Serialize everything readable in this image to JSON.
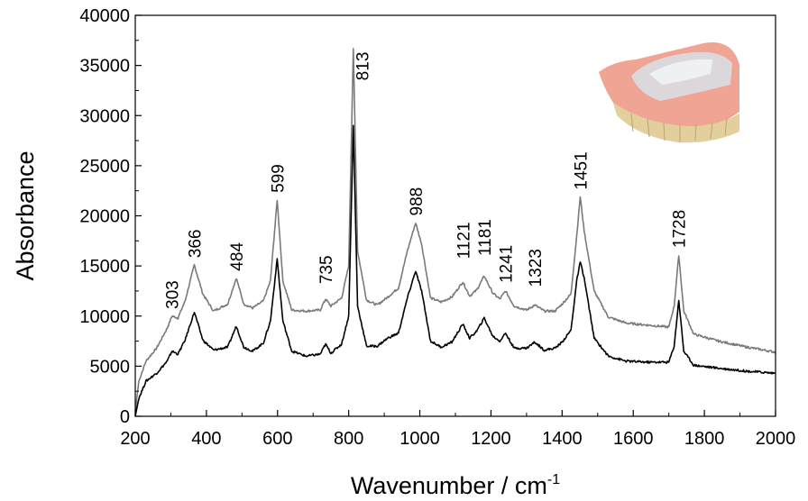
{
  "chart_data": {
    "type": "line",
    "xlabel": "Wavenumber / cm",
    "xlabel_superscript": "-1",
    "ylabel": "Absorbance",
    "xlim": [
      200,
      2000
    ],
    "ylim": [
      0,
      40000
    ],
    "x_ticks": [
      200,
      400,
      600,
      800,
      1000,
      1200,
      1400,
      1600,
      1800,
      2000
    ],
    "y_ticks": [
      0,
      5000,
      10000,
      15000,
      20000,
      25000,
      30000,
      35000,
      40000
    ],
    "grid": false,
    "inset_image": "denture photograph (pink acrylic base with teeth)",
    "series": [
      {
        "name": "upper spectrum",
        "color": "#7a7a7a",
        "points": [
          [
            200,
            500
          ],
          [
            210,
            3500
          ],
          [
            230,
            5500
          ],
          [
            260,
            6800
          ],
          [
            290,
            8800
          ],
          [
            303,
            10000
          ],
          [
            320,
            9800
          ],
          [
            340,
            11500
          ],
          [
            366,
            15100
          ],
          [
            390,
            12200
          ],
          [
            420,
            10500
          ],
          [
            460,
            11200
          ],
          [
            484,
            13800
          ],
          [
            505,
            11200
          ],
          [
            530,
            10800
          ],
          [
            560,
            11500
          ],
          [
            580,
            13500
          ],
          [
            599,
            21600
          ],
          [
            615,
            13500
          ],
          [
            640,
            10600
          ],
          [
            680,
            10500
          ],
          [
            720,
            10600
          ],
          [
            735,
            11700
          ],
          [
            750,
            11000
          ],
          [
            780,
            11800
          ],
          [
            800,
            15000
          ],
          [
            813,
            36700
          ],
          [
            825,
            16500
          ],
          [
            850,
            11600
          ],
          [
            880,
            11100
          ],
          [
            910,
            11900
          ],
          [
            940,
            12800
          ],
          [
            965,
            16500
          ],
          [
            988,
            19300
          ],
          [
            1005,
            17200
          ],
          [
            1030,
            11800
          ],
          [
            1060,
            11400
          ],
          [
            1090,
            11900
          ],
          [
            1121,
            13400
          ],
          [
            1140,
            12000
          ],
          [
            1160,
            12600
          ],
          [
            1181,
            14000
          ],
          [
            1205,
            12300
          ],
          [
            1225,
            11700
          ],
          [
            1241,
            12500
          ],
          [
            1265,
            11000
          ],
          [
            1300,
            10600
          ],
          [
            1323,
            11100
          ],
          [
            1350,
            10500
          ],
          [
            1380,
            10500
          ],
          [
            1400,
            11200
          ],
          [
            1425,
            12200
          ],
          [
            1441,
            18000
          ],
          [
            1451,
            21900
          ],
          [
            1462,
            18500
          ],
          [
            1490,
            12500
          ],
          [
            1530,
            9900
          ],
          [
            1580,
            9300
          ],
          [
            1640,
            9100
          ],
          [
            1700,
            8900
          ],
          [
            1715,
            11000
          ],
          [
            1728,
            16100
          ],
          [
            1742,
            10500
          ],
          [
            1770,
            8200
          ],
          [
            1840,
            7500
          ],
          [
            1920,
            6900
          ],
          [
            2000,
            6400
          ]
        ]
      },
      {
        "name": "lower spectrum",
        "color": "#000000",
        "points": [
          [
            200,
            0
          ],
          [
            210,
            1800
          ],
          [
            230,
            3500
          ],
          [
            260,
            4300
          ],
          [
            290,
            5500
          ],
          [
            303,
            6500
          ],
          [
            320,
            6200
          ],
          [
            340,
            7600
          ],
          [
            366,
            10400
          ],
          [
            390,
            7600
          ],
          [
            420,
            6600
          ],
          [
            460,
            6900
          ],
          [
            484,
            9000
          ],
          [
            505,
            6900
          ],
          [
            530,
            6500
          ],
          [
            560,
            7300
          ],
          [
            580,
            9500
          ],
          [
            599,
            15700
          ],
          [
            615,
            9500
          ],
          [
            640,
            6500
          ],
          [
            680,
            6000
          ],
          [
            720,
            6200
          ],
          [
            735,
            7200
          ],
          [
            750,
            6300
          ],
          [
            780,
            7200
          ],
          [
            800,
            10000
          ],
          [
            813,
            29000
          ],
          [
            825,
            11000
          ],
          [
            850,
            7000
          ],
          [
            880,
            7000
          ],
          [
            910,
            7800
          ],
          [
            940,
            8300
          ],
          [
            965,
            11800
          ],
          [
            988,
            14500
          ],
          [
            1005,
            12500
          ],
          [
            1030,
            7500
          ],
          [
            1060,
            6900
          ],
          [
            1090,
            7400
          ],
          [
            1121,
            9200
          ],
          [
            1140,
            7800
          ],
          [
            1160,
            8500
          ],
          [
            1181,
            9800
          ],
          [
            1205,
            8000
          ],
          [
            1225,
            7500
          ],
          [
            1241,
            8300
          ],
          [
            1265,
            6800
          ],
          [
            1300,
            6800
          ],
          [
            1323,
            7400
          ],
          [
            1350,
            6600
          ],
          [
            1380,
            6800
          ],
          [
            1400,
            7400
          ],
          [
            1425,
            8600
          ],
          [
            1441,
            13500
          ],
          [
            1451,
            15400
          ],
          [
            1462,
            13800
          ],
          [
            1490,
            7800
          ],
          [
            1530,
            6000
          ],
          [
            1580,
            5500
          ],
          [
            1640,
            5400
          ],
          [
            1700,
            5400
          ],
          [
            1715,
            7000
          ],
          [
            1728,
            11600
          ],
          [
            1742,
            6500
          ],
          [
            1770,
            5100
          ],
          [
            1840,
            4800
          ],
          [
            1920,
            4500
          ],
          [
            2000,
            4300
          ]
        ]
      }
    ],
    "annotations": [
      {
        "text": "303",
        "x": 303,
        "y": 10000,
        "offset": 700
      },
      {
        "text": "366",
        "x": 366,
        "y": 15100,
        "offset": 700
      },
      {
        "text": "484",
        "x": 484,
        "y": 13800,
        "offset": 700
      },
      {
        "text": "599",
        "x": 599,
        "y": 21600,
        "offset": 700
      },
      {
        "text": "735",
        "x": 735,
        "y": 11700,
        "offset": 1500
      },
      {
        "text": "813",
        "x": 838,
        "y": 33500,
        "offset": 0
      },
      {
        "text": "988",
        "x": 988,
        "y": 19300,
        "offset": 700
      },
      {
        "text": "1121",
        "x": 1121,
        "y": 15000,
        "offset": 700
      },
      {
        "text": "1181",
        "x": 1181,
        "y": 15300,
        "offset": 700
      },
      {
        "text": "1241",
        "x": 1241,
        "y": 12600,
        "offset": 700
      },
      {
        "text": "1323",
        "x": 1323,
        "y": 12200,
        "offset": 700
      },
      {
        "text": "1451",
        "x": 1451,
        "y": 21900,
        "offset": 700
      },
      {
        "text": "1728",
        "x": 1728,
        "y": 16100,
        "offset": 700
      }
    ]
  }
}
